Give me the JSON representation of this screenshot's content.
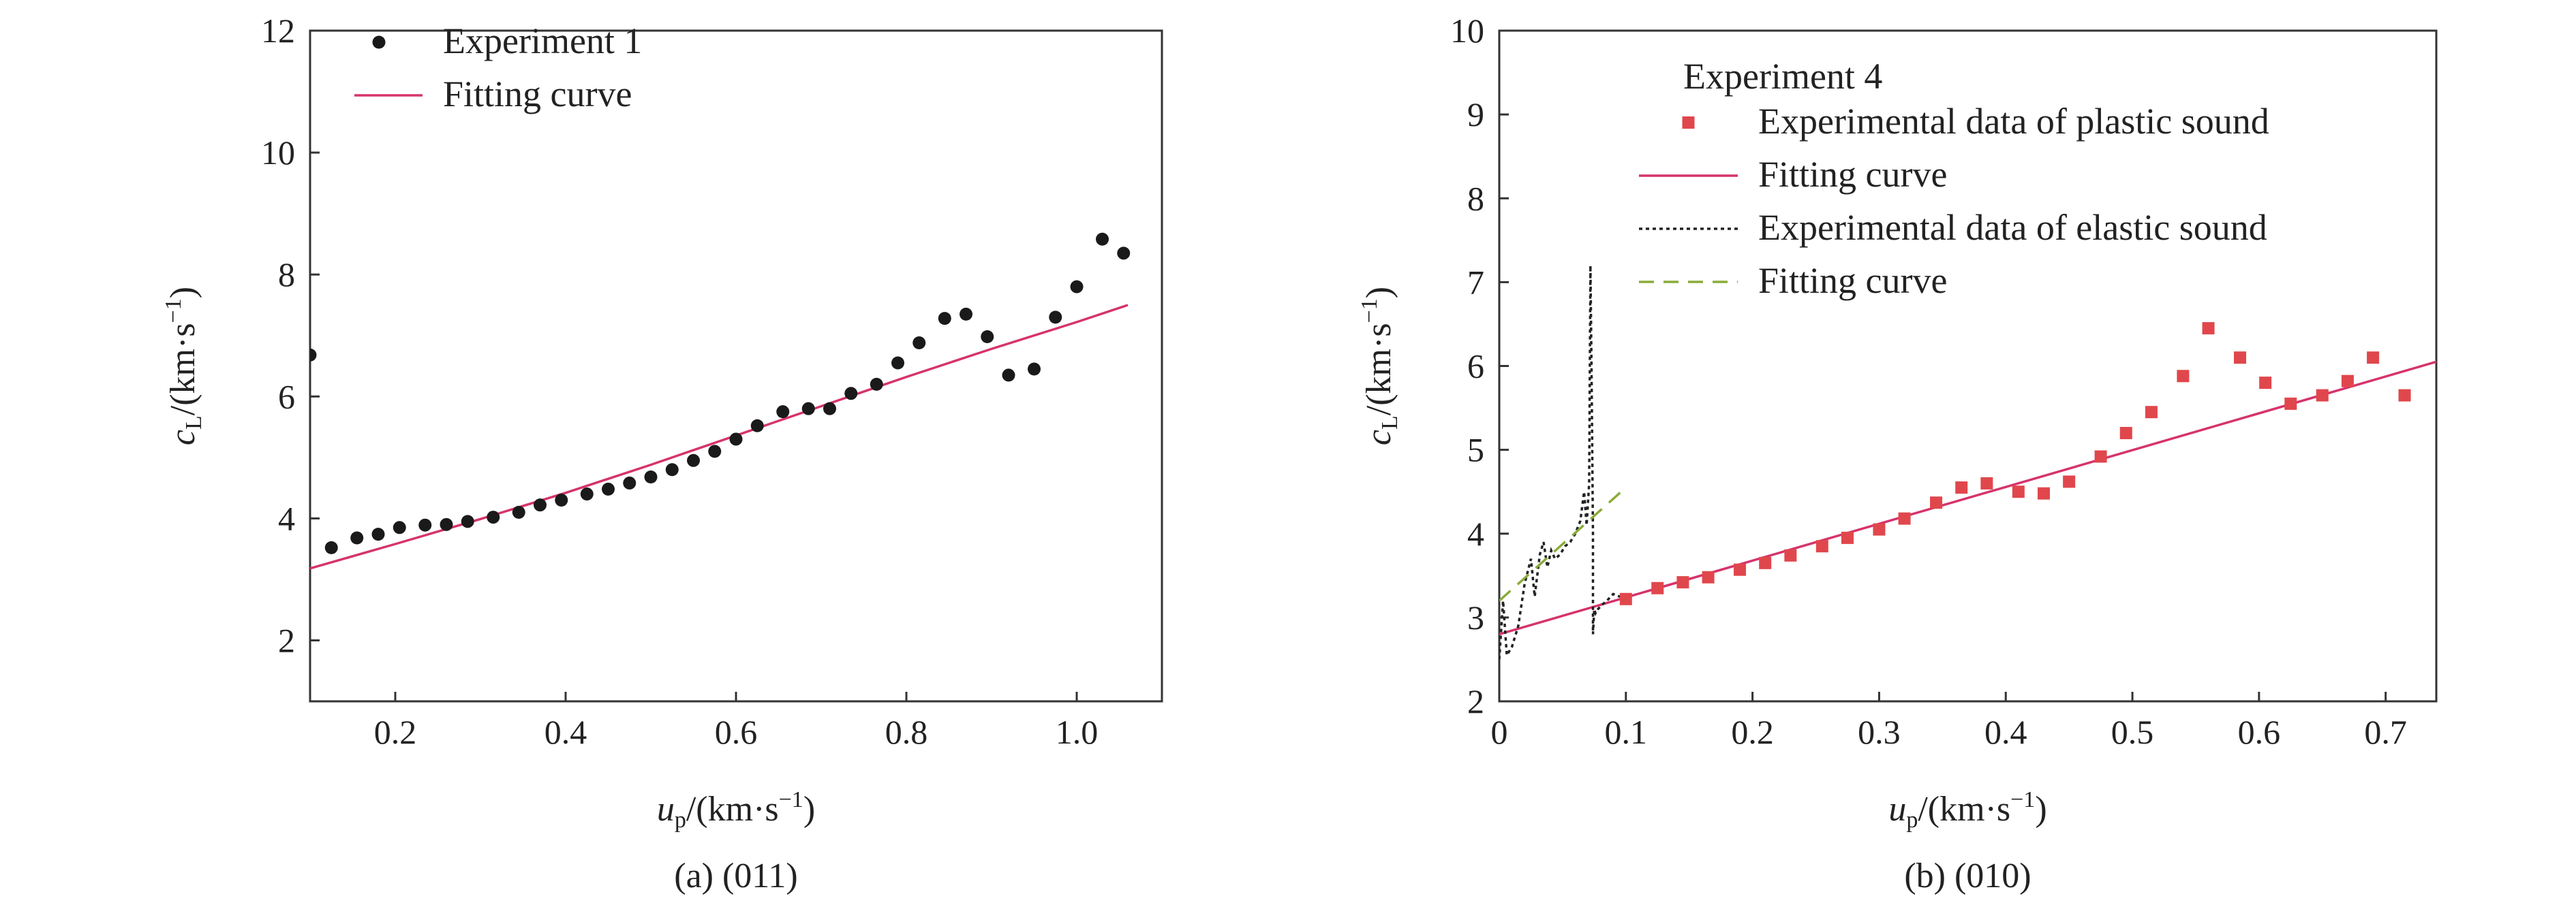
{
  "chart_data": [
    {
      "type": "scatter",
      "caption": "(a) (011)",
      "xlabel": {
        "sym": "u",
        "sub": "p",
        "unit": "/(km·s",
        "sup": "−1",
        "close": ")"
      },
      "ylabel": {
        "sym": "c",
        "sub": "L",
        "unit": "/(km·s",
        "sup": "−1",
        "close": ")"
      },
      "xlim": [
        0.1,
        1.1
      ],
      "ylim": [
        1.0,
        12.0
      ],
      "xticks": [
        0.2,
        0.4,
        0.6,
        0.8,
        1.0
      ],
      "xtick_labels": [
        "0.2",
        "0.4",
        "0.6",
        "0.8",
        "1.0"
      ],
      "yticks": [
        2,
        4,
        6,
        8,
        10,
        12
      ],
      "ytick_labels": [
        "2",
        "4",
        "6",
        "8",
        "10",
        "12"
      ],
      "grid": false,
      "legend_position": "top-left",
      "series": [
        {
          "name": "Experiment 1",
          "kind": "scatter",
          "marker": "circle",
          "color": "#1a1a1a",
          "x": [
            0.1,
            0.125,
            0.155,
            0.18,
            0.205,
            0.235,
            0.26,
            0.285,
            0.315,
            0.345,
            0.37,
            0.395,
            0.425,
            0.45,
            0.475,
            0.5,
            0.525,
            0.55,
            0.575,
            0.6,
            0.625,
            0.655,
            0.685,
            0.71,
            0.735,
            0.765,
            0.79,
            0.815,
            0.845,
            0.87,
            0.895,
            0.92,
            0.95,
            0.975,
            1.0,
            1.03,
            1.055
          ],
          "y": [
            6.68,
            3.52,
            3.68,
            3.74,
            3.85,
            3.89,
            3.9,
            3.95,
            4.02,
            4.1,
            4.22,
            4.3,
            4.4,
            4.48,
            4.58,
            4.68,
            4.8,
            4.95,
            5.1,
            5.3,
            5.52,
            5.75,
            5.8,
            5.8,
            6.05,
            6.2,
            6.55,
            6.88,
            7.28,
            7.35,
            6.98,
            6.35,
            6.45,
            7.3,
            7.8,
            8.58,
            8.35
          ]
        },
        {
          "name": "Fitting curve",
          "kind": "line",
          "color": "#d6336c",
          "x": [
            0.1,
            0.2,
            0.3,
            0.4,
            0.5,
            0.6,
            0.7,
            0.8,
            0.9,
            1.0,
            1.06
          ],
          "y": [
            3.18,
            3.58,
            3.99,
            4.42,
            4.88,
            5.36,
            5.84,
            6.32,
            6.78,
            7.22,
            7.5
          ]
        }
      ]
    },
    {
      "type": "scatter",
      "caption": "(b) (010)",
      "xlabel": {
        "sym": "u",
        "sub": "p",
        "unit": "/(km·s",
        "sup": "−1",
        "close": ")"
      },
      "ylabel": {
        "sym": "c",
        "sub": "L",
        "unit": "/(km·s",
        "sup": "−1",
        "close": ")"
      },
      "xlim": [
        0.0,
        0.74
      ],
      "ylim": [
        2.0,
        10.0
      ],
      "xticks": [
        0,
        0.1,
        0.2,
        0.3,
        0.4,
        0.5,
        0.6,
        0.7
      ],
      "xtick_labels": [
        "0",
        "0.1",
        "0.2",
        "0.3",
        "0.4",
        "0.5",
        "0.6",
        "0.7"
      ],
      "yticks": [
        2,
        3,
        4,
        5,
        6,
        7,
        8,
        9,
        10
      ],
      "ytick_labels": [
        "2",
        "3",
        "4",
        "5",
        "6",
        "7",
        "8",
        "9",
        "10"
      ],
      "grid": false,
      "legend_title": "Experiment 4",
      "legend_position": "top-left",
      "series": [
        {
          "name": "Experimental data of plastic sound",
          "kind": "scatter",
          "marker": "square",
          "color": "#e0474c",
          "x": [
            0.1,
            0.125,
            0.145,
            0.165,
            0.19,
            0.21,
            0.23,
            0.255,
            0.275,
            0.3,
            0.32,
            0.345,
            0.365,
            0.385,
            0.41,
            0.43,
            0.45,
            0.475,
            0.495,
            0.515,
            0.54,
            0.56,
            0.585,
            0.605,
            0.625,
            0.65,
            0.67,
            0.69,
            0.715
          ],
          "y": [
            3.22,
            3.35,
            3.42,
            3.48,
            3.57,
            3.65,
            3.74,
            3.85,
            3.95,
            4.05,
            4.18,
            4.37,
            4.55,
            4.6,
            4.5,
            4.48,
            4.62,
            4.92,
            5.2,
            5.45,
            5.88,
            6.45,
            6.1,
            5.8,
            5.55,
            5.65,
            5.82,
            6.1,
            5.65
          ]
        },
        {
          "name": "Fitting curve",
          "kind": "line",
          "color": "#d6336c",
          "x": [
            0.0,
            0.74
          ],
          "y": [
            2.8,
            6.05
          ]
        },
        {
          "name": "Experimental data of elastic sound",
          "kind": "line",
          "dash": "dotted",
          "color": "#222222",
          "x": [
            0.0,
            0.003,
            0.006,
            0.01,
            0.015,
            0.02,
            0.025,
            0.028,
            0.032,
            0.035,
            0.038,
            0.041,
            0.044,
            0.048,
            0.052,
            0.056,
            0.06,
            0.064,
            0.067,
            0.069,
            0.071,
            0.072,
            0.073,
            0.074,
            0.074,
            0.075,
            0.076,
            0.078,
            0.081,
            0.085,
            0.09,
            0.095,
            0.1
          ],
          "y": [
            2.5,
            3.2,
            2.55,
            2.65,
            2.9,
            3.4,
            3.7,
            3.25,
            3.75,
            3.9,
            3.6,
            3.8,
            3.7,
            3.75,
            3.85,
            3.9,
            4.0,
            4.15,
            4.5,
            4.1,
            4.6,
            7.2,
            5.8,
            4.0,
            2.8,
            3.1,
            3.05,
            3.1,
            3.15,
            3.2,
            3.28,
            3.25,
            3.25
          ]
        },
        {
          "name": "Fitting curve",
          "kind": "line",
          "dash": "dashed",
          "color": "#8aab3a",
          "x": [
            0.0,
            0.1
          ],
          "y": [
            3.2,
            4.55
          ]
        }
      ]
    }
  ]
}
